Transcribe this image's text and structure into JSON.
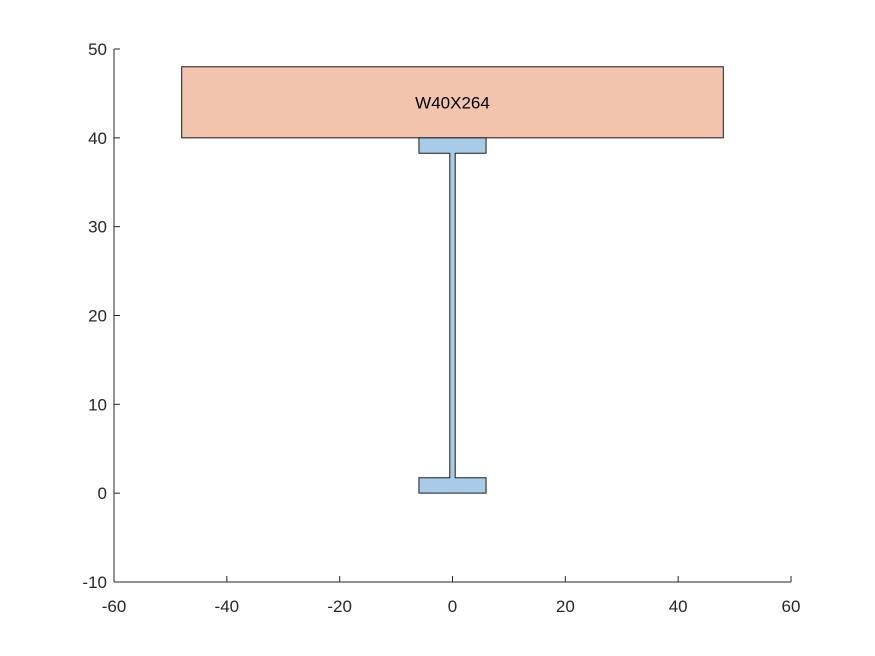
{
  "figure": {
    "label": "W40X264",
    "colors": {
      "slab_fill": "#f2c4ae",
      "beam_fill": "#a8cce8",
      "outline": "#1a1a1a",
      "axis": "#262626",
      "background": "#ffffff"
    }
  },
  "chart_data": {
    "type": "diagram",
    "title": "",
    "xlabel": "",
    "ylabel": "",
    "xlim": [
      -60,
      60
    ],
    "ylim": [
      -10,
      50
    ],
    "x_ticks": [
      -60,
      -40,
      -20,
      0,
      20,
      40,
      60
    ],
    "y_ticks": [
      -10,
      0,
      10,
      20,
      30,
      40,
      50
    ],
    "x_tick_labels": [
      "-60",
      "-40",
      "-20",
      "0",
      "20",
      "40",
      "60"
    ],
    "y_tick_labels": [
      "-10",
      "0",
      "10",
      "20",
      "30",
      "40",
      "50"
    ],
    "shapes": [
      {
        "name": "concrete-slab",
        "kind": "rectangle",
        "x": [
          -48,
          48
        ],
        "y": [
          40,
          48
        ],
        "fill": "#f2c4ae",
        "label": "W40X264"
      },
      {
        "name": "steel-i-beam",
        "kind": "polygon",
        "fill": "#a8cce8",
        "points": [
          [
            -5.95,
            0
          ],
          [
            5.95,
            0
          ],
          [
            5.95,
            1.73
          ],
          [
            0.48,
            1.73
          ],
          [
            0.48,
            38.27
          ],
          [
            5.95,
            38.27
          ],
          [
            5.95,
            40
          ],
          [
            -5.95,
            40
          ],
          [
            -5.95,
            38.27
          ],
          [
            -0.48,
            38.27
          ],
          [
            -0.48,
            1.73
          ],
          [
            -5.95,
            1.73
          ]
        ]
      }
    ]
  }
}
